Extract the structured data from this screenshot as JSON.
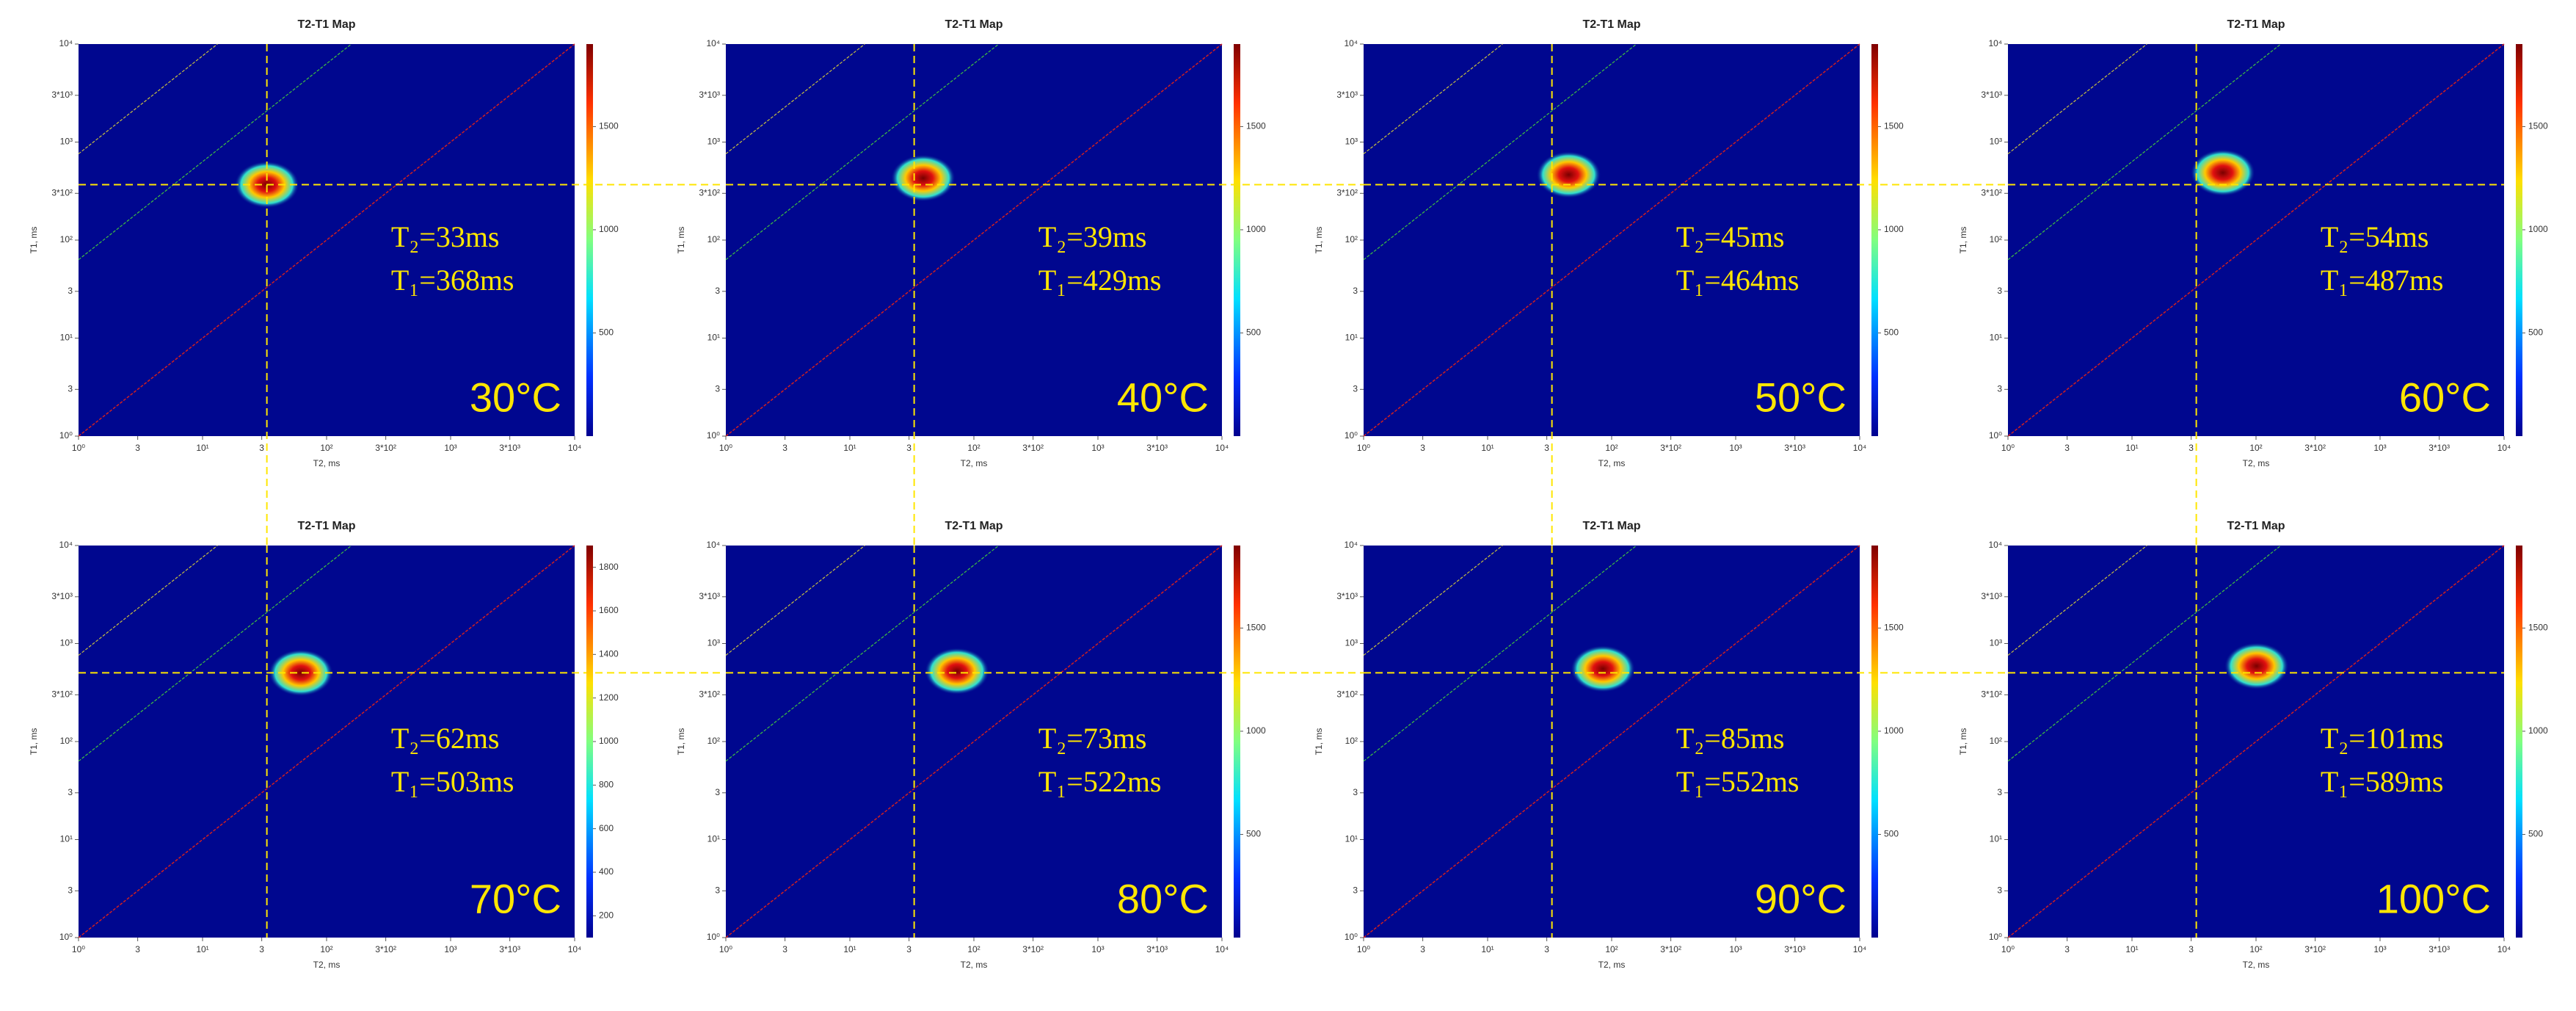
{
  "chart_data": [
    {
      "type": "heatmap",
      "title": "T2-T1 Map",
      "x_label": "T2, ms",
      "y_label": "T1, ms",
      "xscale": "log",
      "yscale": "log",
      "xlim": [
        1,
        10000
      ],
      "ylim": [
        1,
        10000
      ],
      "xticks": [
        {
          "value": 1,
          "label": "10⁰"
        },
        3,
        {
          "value": 10,
          "label": "10¹"
        },
        {
          "value": 30,
          "label": "3"
        },
        {
          "value": 100,
          "label": "10²"
        },
        {
          "value": 300,
          "label": "3*10²"
        },
        {
          "value": 1000,
          "label": "10³"
        },
        {
          "value": 3000,
          "label": "3*10³"
        },
        {
          "value": 10000,
          "label": "10⁴"
        }
      ],
      "yticks": [
        {
          "value": 1,
          "label": "10⁰"
        },
        3,
        {
          "value": 10,
          "label": "10¹"
        },
        {
          "value": 30,
          "label": "3"
        },
        {
          "value": 100,
          "label": "10²"
        },
        {
          "value": 300,
          "label": "3*10²"
        },
        {
          "value": 1000,
          "label": "10³"
        },
        {
          "value": 3000,
          "label": "3*10³"
        },
        {
          "value": 10000,
          "label": "10⁴"
        }
      ],
      "peak_x": 33,
      "peak_y": 368,
      "annotations": [
        "T₂=33ms",
        "T₁=368ms",
        "30°C"
      ],
      "colorbar_lim": [
        0,
        1900
      ],
      "colorbar_ticks": [
        500,
        1000,
        1500
      ]
    },
    {
      "type": "heatmap",
      "title": "T2-T1 Map",
      "x_label": "T2, ms",
      "y_label": "T1, ms",
      "xscale": "log",
      "yscale": "log",
      "xlim": [
        1,
        10000
      ],
      "ylim": [
        1,
        10000
      ],
      "xticks": [
        {
          "value": 1,
          "label": "10⁰"
        },
        3,
        {
          "value": 10,
          "label": "10¹"
        },
        {
          "value": 30,
          "label": "3"
        },
        {
          "value": 100,
          "label": "10²"
        },
        {
          "value": 300,
          "label": "3*10²"
        },
        {
          "value": 1000,
          "label": "10³"
        },
        {
          "value": 3000,
          "label": "3*10³"
        },
        {
          "value": 10000,
          "label": "10⁴"
        }
      ],
      "yticks": [
        {
          "value": 1,
          "label": "10⁰"
        },
        3,
        {
          "value": 10,
          "label": "10¹"
        },
        {
          "value": 30,
          "label": "3"
        },
        {
          "value": 100,
          "label": "10²"
        },
        {
          "value": 300,
          "label": "3*10²"
        },
        {
          "value": 1000,
          "label": "10³"
        },
        {
          "value": 3000,
          "label": "3*10³"
        },
        {
          "value": 10000,
          "label": "10⁴"
        }
      ],
      "peak_x": 39,
      "peak_y": 429,
      "annotations": [
        "T₂=39ms",
        "T₁=429ms",
        "40°C"
      ],
      "colorbar_lim": [
        0,
        1900
      ],
      "colorbar_ticks": [
        500,
        1000,
        1500
      ]
    },
    {
      "type": "heatmap",
      "title": "T2-T1 Map",
      "x_label": "T2, ms",
      "y_label": "T1, ms",
      "xscale": "log",
      "yscale": "log",
      "xlim": [
        1,
        10000
      ],
      "ylim": [
        1,
        10000
      ],
      "xticks": [
        {
          "value": 1,
          "label": "10⁰"
        },
        3,
        {
          "value": 10,
          "label": "10¹"
        },
        {
          "value": 30,
          "label": "3"
        },
        {
          "value": 100,
          "label": "10²"
        },
        {
          "value": 300,
          "label": "3*10²"
        },
        {
          "value": 1000,
          "label": "10³"
        },
        {
          "value": 3000,
          "label": "3*10³"
        },
        {
          "value": 10000,
          "label": "10⁴"
        }
      ],
      "yticks": [
        {
          "value": 1,
          "label": "10⁰"
        },
        3,
        {
          "value": 10,
          "label": "10¹"
        },
        {
          "value": 30,
          "label": "3"
        },
        {
          "value": 100,
          "label": "10²"
        },
        {
          "value": 300,
          "label": "3*10²"
        },
        {
          "value": 1000,
          "label": "10³"
        },
        {
          "value": 3000,
          "label": "3*10³"
        },
        {
          "value": 10000,
          "label": "10⁴"
        }
      ],
      "peak_x": 45,
      "peak_y": 464,
      "annotations": [
        "T₂=45ms",
        "T₁=464ms",
        "50°C"
      ],
      "colorbar_lim": [
        0,
        1900
      ],
      "colorbar_ticks": [
        500,
        1000,
        1500
      ]
    },
    {
      "type": "heatmap",
      "title": "T2-T1 Map",
      "x_label": "T2, ms",
      "y_label": "T1, ms",
      "xscale": "log",
      "yscale": "log",
      "xlim": [
        1,
        10000
      ],
      "ylim": [
        1,
        10000
      ],
      "xticks": [
        {
          "value": 1,
          "label": "10⁰"
        },
        3,
        {
          "value": 10,
          "label": "10¹"
        },
        {
          "value": 30,
          "label": "3"
        },
        {
          "value": 100,
          "label": "10²"
        },
        {
          "value": 300,
          "label": "3*10²"
        },
        {
          "value": 1000,
          "label": "10³"
        },
        {
          "value": 3000,
          "label": "3*10³"
        },
        {
          "value": 10000,
          "label": "10⁴"
        }
      ],
      "yticks": [
        {
          "value": 1,
          "label": "10⁰"
        },
        3,
        {
          "value": 10,
          "label": "10¹"
        },
        {
          "value": 30,
          "label": "3"
        },
        {
          "value": 100,
          "label": "10²"
        },
        {
          "value": 300,
          "label": "3*10²"
        },
        {
          "value": 1000,
          "label": "10³"
        },
        {
          "value": 3000,
          "label": "3*10³"
        },
        {
          "value": 10000,
          "label": "10⁴"
        }
      ],
      "peak_x": 54,
      "peak_y": 487,
      "annotations": [
        "T₂=54ms",
        "T₁=487ms",
        "60°C"
      ],
      "colorbar_lim": [
        0,
        1900
      ],
      "colorbar_ticks": [
        500,
        1000,
        1500
      ]
    },
    {
      "type": "heatmap",
      "title": "T2-T1 Map",
      "x_label": "T2, ms",
      "y_label": "T1, ms",
      "xscale": "log",
      "yscale": "log",
      "xlim": [
        1,
        10000
      ],
      "ylim": [
        1,
        10000
      ],
      "xticks": [
        {
          "value": 1,
          "label": "10⁰"
        },
        3,
        {
          "value": 10,
          "label": "10¹"
        },
        {
          "value": 30,
          "label": "3"
        },
        {
          "value": 100,
          "label": "10²"
        },
        {
          "value": 300,
          "label": "3*10²"
        },
        {
          "value": 1000,
          "label": "10³"
        },
        {
          "value": 3000,
          "label": "3*10³"
        },
        {
          "value": 10000,
          "label": "10⁴"
        }
      ],
      "yticks": [
        {
          "value": 1,
          "label": "10⁰"
        },
        3,
        {
          "value": 10,
          "label": "10¹"
        },
        {
          "value": 30,
          "label": "3"
        },
        {
          "value": 100,
          "label": "10²"
        },
        {
          "value": 300,
          "label": "3*10²"
        },
        {
          "value": 1000,
          "label": "10³"
        },
        {
          "value": 3000,
          "label": "3*10³"
        },
        {
          "value": 10000,
          "label": "10⁴"
        }
      ],
      "peak_x": 62,
      "peak_y": 503,
      "annotations": [
        "T₂=62ms",
        "T₁=503ms",
        "70°C"
      ],
      "colorbar_lim": [
        100,
        1900
      ],
      "colorbar_ticks": [
        200,
        400,
        600,
        800,
        1000,
        1200,
        1400,
        1600,
        1800
      ]
    },
    {
      "type": "heatmap",
      "title": "T2-T1 Map",
      "x_label": "T2, ms",
      "y_label": "T1, ms",
      "xscale": "log",
      "yscale": "log",
      "xlim": [
        1,
        10000
      ],
      "ylim": [
        1,
        10000
      ],
      "xticks": [
        {
          "value": 1,
          "label": "10⁰"
        },
        3,
        {
          "value": 10,
          "label": "10¹"
        },
        {
          "value": 30,
          "label": "3"
        },
        {
          "value": 100,
          "label": "10²"
        },
        {
          "value": 300,
          "label": "3*10²"
        },
        {
          "value": 1000,
          "label": "10³"
        },
        {
          "value": 3000,
          "label": "3*10³"
        },
        {
          "value": 10000,
          "label": "10⁴"
        }
      ],
      "yticks": [
        {
          "value": 1,
          "label": "10⁰"
        },
        3,
        {
          "value": 10,
          "label": "10¹"
        },
        {
          "value": 30,
          "label": "3"
        },
        {
          "value": 100,
          "label": "10²"
        },
        {
          "value": 300,
          "label": "3*10²"
        },
        {
          "value": 1000,
          "label": "10³"
        },
        {
          "value": 3000,
          "label": "3*10³"
        },
        {
          "value": 10000,
          "label": "10⁴"
        }
      ],
      "peak_x": 73,
      "peak_y": 522,
      "annotations": [
        "T₂=73ms",
        "T₁=522ms",
        "80°C"
      ],
      "colorbar_lim": [
        0,
        1900
      ],
      "colorbar_ticks": [
        500,
        1000,
        1500
      ]
    },
    {
      "type": "heatmap",
      "title": "T2-T1 Map",
      "x_label": "T2, ms",
      "y_label": "T1, ms",
      "xscale": "log",
      "yscale": "log",
      "xlim": [
        1,
        10000
      ],
      "ylim": [
        1,
        10000
      ],
      "xticks": [
        {
          "value": 1,
          "label": "10⁰"
        },
        3,
        {
          "value": 10,
          "label": "10¹"
        },
        {
          "value": 30,
          "label": "3"
        },
        {
          "value": 100,
          "label": "10²"
        },
        {
          "value": 300,
          "label": "3*10²"
        },
        {
          "value": 1000,
          "label": "10³"
        },
        {
          "value": 3000,
          "label": "3*10³"
        },
        {
          "value": 10000,
          "label": "10⁴"
        }
      ],
      "yticks": [
        {
          "value": 1,
          "label": "10⁰"
        },
        3,
        {
          "value": 10,
          "label": "10¹"
        },
        {
          "value": 30,
          "label": "3"
        },
        {
          "value": 100,
          "label": "10²"
        },
        {
          "value": 300,
          "label": "3*10²"
        },
        {
          "value": 1000,
          "label": "10³"
        },
        {
          "value": 3000,
          "label": "3*10³"
        },
        {
          "value": 10000,
          "label": "10⁴"
        }
      ],
      "peak_x": 85,
      "peak_y": 552,
      "annotations": [
        "T₂=85ms",
        "T₁=552ms",
        "90°C"
      ],
      "colorbar_lim": [
        0,
        1900
      ],
      "colorbar_ticks": [
        500,
        1000,
        1500
      ]
    },
    {
      "type": "heatmap",
      "title": "T2-T1 Map",
      "x_label": "T2, ms",
      "y_label": "T1, ms",
      "xscale": "log",
      "yscale": "log",
      "xlim": [
        1,
        10000
      ],
      "ylim": [
        1,
        10000
      ],
      "xticks": [
        {
          "value": 1,
          "label": "10⁰"
        },
        3,
        {
          "value": 10,
          "label": "10¹"
        },
        {
          "value": 30,
          "label": "3"
        },
        {
          "value": 100,
          "label": "10²"
        },
        {
          "value": 300,
          "label": "3*10²"
        },
        {
          "value": 1000,
          "label": "10³"
        },
        {
          "value": 3000,
          "label": "3*10³"
        },
        {
          "value": 10000,
          "label": "10⁴"
        }
      ],
      "yticks": [
        {
          "value": 1,
          "label": "10⁰"
        },
        3,
        {
          "value": 10,
          "label": "10¹"
        },
        {
          "value": 30,
          "label": "3"
        },
        {
          "value": 100,
          "label": "10²"
        },
        {
          "value": 300,
          "label": "3*10²"
        },
        {
          "value": 1000,
          "label": "10³"
        },
        {
          "value": 3000,
          "label": "3*10³"
        },
        {
          "value": 10000,
          "label": "10⁴"
        }
      ],
      "peak_x": 101,
      "peak_y": 589,
      "annotations": [
        "T₂=101ms",
        "T₁=589ms",
        "100°C"
      ],
      "colorbar_lim": [
        0,
        1900
      ],
      "colorbar_ticks": [
        500,
        1000,
        1500
      ]
    }
  ]
}
